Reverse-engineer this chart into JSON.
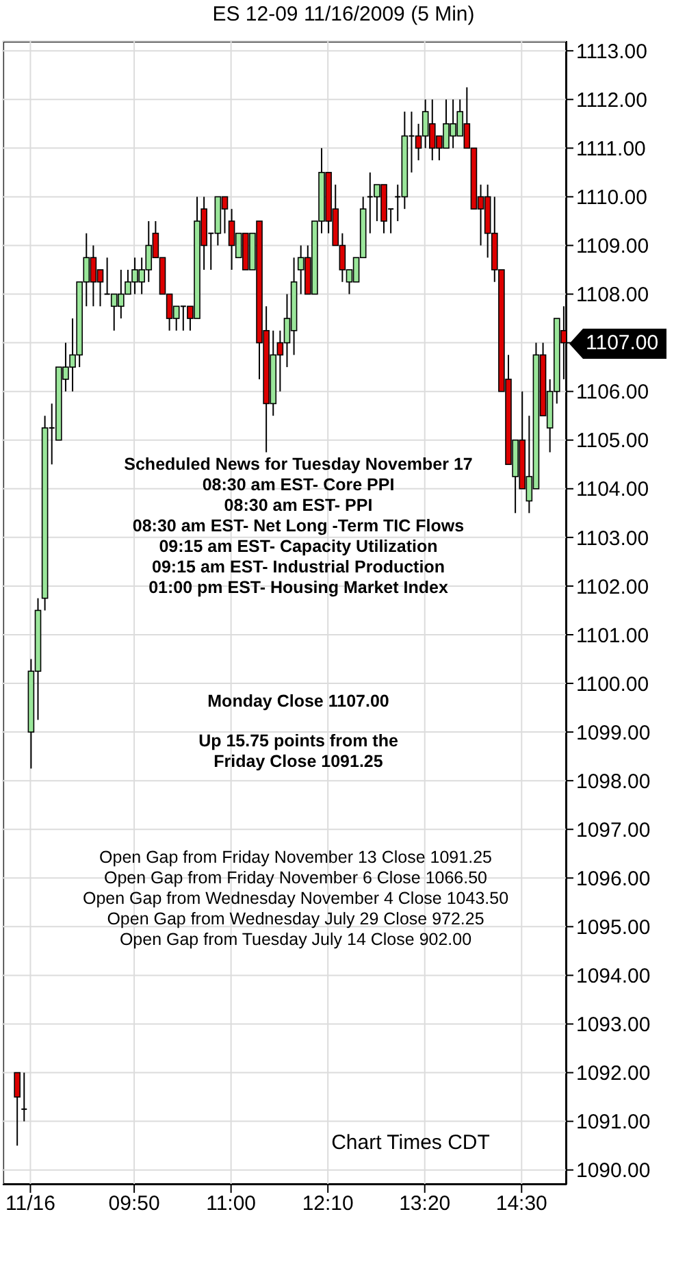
{
  "chart_data": {
    "type": "candlestick",
    "title": "ES 12-09 11/16/2009 (5 Min)",
    "categories": [
      null,
      null,
      "11/16",
      null,
      null,
      null,
      null,
      null,
      null,
      null,
      null,
      null,
      null,
      null,
      null,
      null,
      null,
      "09:50",
      null,
      null,
      null,
      null,
      null,
      null,
      null,
      null,
      null,
      null,
      null,
      null,
      null,
      "11:00",
      null,
      null,
      null,
      null,
      null,
      null,
      null,
      null,
      null,
      null,
      null,
      null,
      null,
      "12:10",
      null,
      null,
      null,
      null,
      null,
      null,
      null,
      null,
      null,
      null,
      null,
      null,
      null,
      "13:20",
      null,
      null,
      null,
      null,
      null,
      null,
      null,
      null,
      null,
      null,
      null,
      null,
      null,
      "14:30",
      null,
      null,
      null,
      null,
      null,
      null
    ],
    "ohlc": [
      [
        1092.0,
        1092.0,
        1090.5,
        1091.5
      ],
      [
        1091.25,
        1092.0,
        1091.0,
        1091.25
      ],
      [
        1099.0,
        1100.5,
        1098.25,
        1100.25
      ],
      [
        1100.25,
        1101.75,
        1099.25,
        1101.5
      ],
      [
        1101.75,
        1105.5,
        1101.5,
        1105.25
      ],
      [
        1105.25,
        1105.75,
        1104.5,
        1105.25
      ],
      [
        1105.0,
        1106.5,
        1105.0,
        1106.5
      ],
      [
        1106.25,
        1107.0,
        1106.0,
        1106.5
      ],
      [
        1106.5,
        1107.5,
        1106.0,
        1106.75
      ],
      [
        1106.75,
        1108.25,
        1106.5,
        1108.25
      ],
      [
        1108.25,
        1109.25,
        1107.75,
        1108.75
      ],
      [
        1108.75,
        1109.0,
        1107.75,
        1108.25
      ],
      [
        1108.5,
        1108.5,
        1107.75,
        1108.25
      ],
      [
        1108.0,
        1108.75,
        1108.0,
        1108.0
      ],
      [
        1107.75,
        1108.0,
        1107.25,
        1108.0
      ],
      [
        1107.75,
        1108.5,
        1107.5,
        1108.0
      ],
      [
        1108.0,
        1108.5,
        1108.0,
        1108.25
      ],
      [
        1108.25,
        1108.75,
        1108.0,
        1108.5
      ],
      [
        1108.25,
        1108.75,
        1108.0,
        1108.5
      ],
      [
        1108.5,
        1109.5,
        1108.25,
        1109.0
      ],
      [
        1109.25,
        1109.5,
        1108.75,
        1108.75
      ],
      [
        1108.75,
        1108.75,
        1108.0,
        1108.0
      ],
      [
        1108.0,
        1108.0,
        1107.25,
        1107.5
      ],
      [
        1107.5,
        1107.75,
        1107.25,
        1107.75
      ],
      [
        1107.75,
        1107.75,
        1107.25,
        1107.75
      ],
      [
        1107.75,
        1107.75,
        1107.25,
        1107.5
      ],
      [
        1107.5,
        1110.0,
        1107.5,
        1109.5
      ],
      [
        1109.75,
        1110.0,
        1108.5,
        1109.0
      ],
      [
        1109.25,
        1109.25,
        1108.5,
        1109.25
      ],
      [
        1109.25,
        1110.0,
        1109.0,
        1110.0
      ],
      [
        1110.0,
        1110.0,
        1109.25,
        1109.75
      ],
      [
        1109.5,
        1109.75,
        1108.5,
        1109.0
      ],
      [
        1108.75,
        1109.25,
        1108.75,
        1109.25
      ],
      [
        1109.25,
        1109.25,
        1108.5,
        1108.5
      ],
      [
        1108.5,
        1109.25,
        1108.5,
        1109.25
      ],
      [
        1109.5,
        1109.5,
        1106.25,
        1107.0
      ],
      [
        1107.25,
        1107.75,
        1104.75,
        1105.75
      ],
      [
        1105.75,
        1107.25,
        1105.5,
        1106.75
      ],
      [
        1107.0,
        1107.25,
        1106.0,
        1106.75
      ],
      [
        1107.0,
        1108.0,
        1106.5,
        1107.5
      ],
      [
        1107.25,
        1108.75,
        1106.75,
        1108.25
      ],
      [
        1108.5,
        1109.0,
        1108.0,
        1108.75
      ],
      [
        1108.75,
        1109.0,
        1108.0,
        1108.0
      ],
      [
        1108.0,
        1109.5,
        1108.0,
        1109.5
      ],
      [
        1109.5,
        1111.0,
        1109.25,
        1110.5
      ],
      [
        1110.5,
        1110.5,
        1109.25,
        1109.5
      ],
      [
        1109.75,
        1110.25,
        1109.0,
        1109.0
      ],
      [
        1109.0,
        1109.25,
        1108.25,
        1108.5
      ],
      [
        1108.25,
        1108.5,
        1108.0,
        1108.5
      ],
      [
        1108.25,
        1108.75,
        1108.25,
        1108.75
      ],
      [
        1108.75,
        1110.0,
        1108.75,
        1109.75
      ],
      [
        1110.0,
        1110.5,
        1109.25,
        1110.0
      ],
      [
        1110.0,
        1110.25,
        1109.5,
        1110.25
      ],
      [
        1110.25,
        1110.25,
        1109.25,
        1109.5
      ],
      [
        1109.75,
        1109.75,
        1109.25,
        1109.75
      ],
      [
        1110.0,
        1110.25,
        1109.5,
        1110.0
      ],
      [
        1110.0,
        1111.75,
        1109.75,
        1111.25
      ],
      [
        1111.25,
        1111.75,
        1110.5,
        1111.25
      ],
      [
        1111.25,
        1111.5,
        1110.75,
        1111.0
      ],
      [
        1111.25,
        1112.0,
        1111.0,
        1111.75
      ],
      [
        1111.5,
        1112.0,
        1110.75,
        1111.0
      ],
      [
        1111.25,
        1111.25,
        1110.75,
        1111.0
      ],
      [
        1111.0,
        1112.0,
        1111.0,
        1111.5
      ],
      [
        1111.25,
        1112.0,
        1111.0,
        1111.5
      ],
      [
        1111.25,
        1112.0,
        1111.25,
        1111.75
      ],
      [
        1111.5,
        1112.25,
        1111.0,
        1111.0
      ],
      [
        1111.0,
        1111.0,
        1109.75,
        1109.75
      ],
      [
        1110.0,
        1110.25,
        1109.0,
        1109.75
      ],
      [
        1110.0,
        1110.25,
        1108.75,
        1109.25
      ],
      [
        1109.25,
        1110.0,
        1108.25,
        1108.5
      ],
      [
        1108.5,
        1108.5,
        1106.0,
        1106.0
      ],
      [
        1106.25,
        1106.75,
        1104.5,
        1104.5
      ],
      [
        1104.25,
        1105.0,
        1103.5,
        1105.0
      ],
      [
        1105.0,
        1106.0,
        1104.0,
        1104.0
      ],
      [
        1103.75,
        1105.5,
        1103.5,
        1104.25
      ],
      [
        1104.0,
        1107.0,
        1104.0,
        1106.75
      ],
      [
        1106.75,
        1107.0,
        1105.5,
        1105.5
      ],
      [
        1105.25,
        1106.25,
        1104.75,
        1106.0
      ],
      [
        1106.0,
        1107.5,
        1105.75,
        1107.5
      ],
      [
        1107.25,
        1107.75,
        1106.25,
        1107.0
      ]
    ],
    "colors": [
      "#dd0000",
      "#000000",
      "#9ae69a",
      "#9ae69a",
      "#9ae69a",
      "#000000",
      "#9ae69a",
      "#9ae69a",
      "#9ae69a",
      "#9ae69a",
      "#9ae69a",
      "#dd0000",
      "#dd0000",
      "#000000",
      "#9ae69a",
      "#9ae69a",
      "#9ae69a",
      "#9ae69a",
      "#9ae69a",
      "#9ae69a",
      "#dd0000",
      "#dd0000",
      "#dd0000",
      "#9ae69a",
      "#000000",
      "#dd0000",
      "#9ae69a",
      "#dd0000",
      "#000000",
      "#9ae69a",
      "#dd0000",
      "#dd0000",
      "#9ae69a",
      "#dd0000",
      "#9ae69a",
      "#dd0000",
      "#dd0000",
      "#9ae69a",
      "#dd0000",
      "#9ae69a",
      "#9ae69a",
      "#9ae69a",
      "#dd0000",
      "#9ae69a",
      "#9ae69a",
      "#dd0000",
      "#dd0000",
      "#dd0000",
      "#9ae69a",
      "#9ae69a",
      "#9ae69a",
      "#000000",
      "#9ae69a",
      "#dd0000",
      "#000000",
      "#000000",
      "#9ae69a",
      "#000000",
      "#dd0000",
      "#9ae69a",
      "#dd0000",
      "#dd0000",
      "#9ae69a",
      "#9ae69a",
      "#9ae69a",
      "#dd0000",
      "#dd0000",
      "#dd0000",
      "#dd0000",
      "#dd0000",
      "#dd0000",
      "#dd0000",
      "#9ae69a",
      "#dd0000",
      "#9ae69a",
      "#9ae69a",
      "#dd0000",
      "#9ae69a",
      "#9ae69a",
      "#dd0000"
    ],
    "ylim": [
      1089.7,
      1113.2
    ],
    "yticks": [
      {
        "value": 1090,
        "label": "1090.00"
      },
      {
        "value": 1091,
        "label": "1091.00"
      },
      {
        "value": 1092,
        "label": "1092.00"
      },
      {
        "value": 1093,
        "label": "1093.00"
      },
      {
        "value": 1094,
        "label": "1094.00"
      },
      {
        "value": 1095,
        "label": "1095.00"
      },
      {
        "value": 1096,
        "label": "1096.00"
      },
      {
        "value": 1097,
        "label": "1097.00"
      },
      {
        "value": 1098,
        "label": "1098.00"
      },
      {
        "value": 1099,
        "label": "1099.00"
      },
      {
        "value": 1100,
        "label": "1100.00"
      },
      {
        "value": 1101,
        "label": "1101.00"
      },
      {
        "value": 1102,
        "label": "1102.00"
      },
      {
        "value": 1103,
        "label": "1103.00"
      },
      {
        "value": 1104,
        "label": "1104.00"
      },
      {
        "value": 1105,
        "label": "1105.00"
      },
      {
        "value": 1106,
        "label": "1106.00"
      },
      {
        "value": 1107,
        "label": null
      },
      {
        "value": 1108,
        "label": "1108.00"
      },
      {
        "value": 1109,
        "label": "1109.00"
      },
      {
        "value": 1110,
        "label": "1110.00"
      },
      {
        "value": 1111,
        "label": "1111.00"
      },
      {
        "value": 1112,
        "label": "1112.00"
      },
      {
        "value": 1113,
        "label": "1113.00"
      }
    ],
    "grid": true,
    "annotations": [
      "Scheduled News for Tuesday November 17",
      "08:30 am EST- Core PPI",
      "08:30 am EST- PPI",
      "08:30 am EST- Net Long -Term TIC Flows",
      "09:15 am EST- Capacity Utilization",
      "09:15 am EST- Industrial Production",
      "01:00 pm EST- Housing Market Index",
      "Monday Close 1107.00",
      "Up 15.75 points from the",
      "Friday Close 1091.25",
      "Open Gap from Friday November 13 Close 1091.25",
      "Open Gap from Friday November 6 Close 1066.50",
      "Open Gap from Wednesday November 4 Close 1043.50",
      "Open Gap from Wednesday July 29 Close 972.25",
      "Open Gap from Tuesday July 14 Close 902.00",
      "Chart Times CDT",
      "1107.00"
    ]
  }
}
